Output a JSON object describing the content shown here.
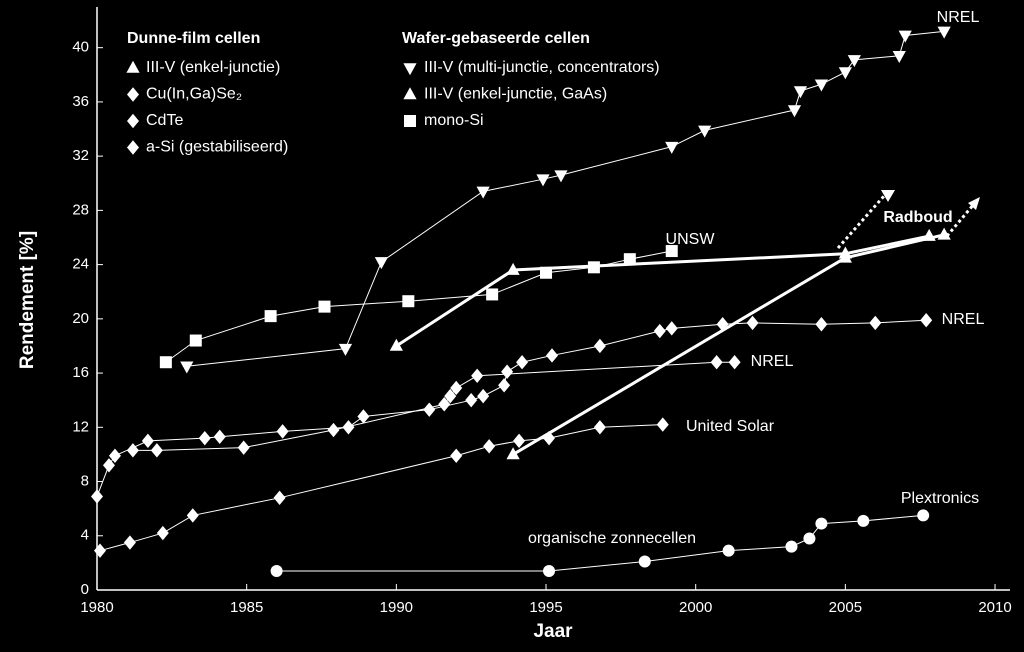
{
  "chart_data": {
    "type": "line",
    "x_label": "Jaar",
    "y_label": "Rendement [%]",
    "xlim": [
      1980,
      2010.5
    ],
    "ylim": [
      0,
      43
    ],
    "xticks": [
      1980,
      1985,
      1990,
      1995,
      2000,
      2005,
      2010
    ],
    "yticks": [
      0,
      4,
      8,
      12,
      16,
      20,
      24,
      28,
      32,
      36,
      40
    ],
    "color": "#ffffff",
    "groups": [
      {
        "title": "Dunne-film cellen",
        "series": [
          {
            "name": "III-V (enkel-junctie)",
            "marker": "triangle-up",
            "line_width": 3,
            "x": [
              1993.9,
              2005.0,
              2008.3
            ],
            "values": [
              10.0,
              24.5,
              26.2
            ]
          },
          {
            "name": "Cu(In,Ga)Se₂",
            "marker": "diamond",
            "line_width": 1,
            "x": [
              1980.0,
              1980.4,
              1980.6,
              1981.7,
              1983.6,
              1984.1,
              1986.2,
              1988.4,
              1988.9,
              1991.1,
              1992.5,
              1992.9,
              1993.6,
              1993.7,
              1994.2,
              1995.2,
              1996.8,
              1998.8,
              1999.2,
              2000.9,
              2001.9,
              2004.2,
              2006.0,
              2007.7
            ],
            "values": [
              6.9,
              9.2,
              9.9,
              11.0,
              11.2,
              11.3,
              11.7,
              12.0,
              12.8,
              13.3,
              14.0,
              14.3,
              15.1,
              16.1,
              16.8,
              17.3,
              18.0,
              19.1,
              19.3,
              19.6,
              19.7,
              19.6,
              19.7,
              19.9
            ]
          },
          {
            "name": "CdTe",
            "marker": "diamond",
            "line_width": 1,
            "x": [
              1981.2,
              1982.0,
              1984.9,
              1987.9,
              1991.6,
              1991.8,
              1992.0,
              1992.7,
              2000.7,
              2001.3
            ],
            "values": [
              10.3,
              10.3,
              10.5,
              11.8,
              13.7,
              14.3,
              14.9,
              15.8,
              16.8,
              16.8
            ]
          },
          {
            "name": "a-Si (gestabiliseerd)",
            "marker": "diamond",
            "line_width": 1,
            "x": [
              1980.1,
              1981.1,
              1982.2,
              1983.2,
              1986.1,
              1992.0,
              1993.1,
              1994.1,
              1995.1,
              1996.8,
              1998.9
            ],
            "values": [
              2.9,
              3.5,
              4.2,
              5.5,
              6.8,
              9.9,
              10.6,
              11.0,
              11.2,
              12.0,
              12.2
            ]
          }
        ]
      },
      {
        "title": "Wafer-gebaseerde cellen",
        "series": [
          {
            "name": "III-V (multi-junctie, concentrators)",
            "marker": "triangle-down",
            "line_width": 1,
            "x": [
              1983.0,
              1988.3,
              1989.5,
              1992.9,
              1994.9,
              1995.5,
              1999.2,
              2000.3,
              2003.3,
              2003.5,
              2004.2,
              2005.0,
              2005.3,
              2006.8,
              2007.0,
              2008.3
            ],
            "values": [
              16.5,
              17.8,
              24.2,
              29.4,
              30.3,
              30.6,
              32.7,
              33.9,
              35.4,
              36.8,
              37.3,
              38.2,
              39.1,
              39.4,
              40.9,
              41.2
            ]
          },
          {
            "name": "III-V (enkel-junctie, GaAs)",
            "marker": "triangle-up",
            "line_width": 3,
            "x": [
              1990.0,
              1993.9,
              2005.0,
              2007.8
            ],
            "values": [
              18.0,
              23.6,
              24.8,
              26.1
            ]
          },
          {
            "name": "mono-Si",
            "marker": "square",
            "line_width": 1,
            "x": [
              1982.3,
              1983.3,
              1985.8,
              1987.6,
              1990.4,
              1993.2,
              1995.0,
              1996.6,
              1997.8,
              1999.2
            ],
            "values": [
              16.8,
              18.4,
              20.2,
              20.9,
              21.3,
              21.8,
              23.4,
              23.8,
              24.4,
              25.0
            ]
          }
        ]
      }
    ],
    "other_series": [
      {
        "name": "organische zonnecellen",
        "marker": "circle",
        "line_width": 1,
        "x": [
          1986.0,
          1995.1,
          1998.3,
          2001.1,
          2003.2,
          2003.8,
          2004.2,
          2005.6,
          2007.6
        ],
        "values": [
          1.4,
          1.4,
          2.1,
          2.9,
          3.2,
          3.8,
          4.9,
          5.1,
          5.5
        ]
      }
    ],
    "annotations": [
      "NREL",
      "UNSW",
      "Radboud",
      "NREL",
      "NREL",
      "United Solar",
      "Plextronics"
    ]
  }
}
